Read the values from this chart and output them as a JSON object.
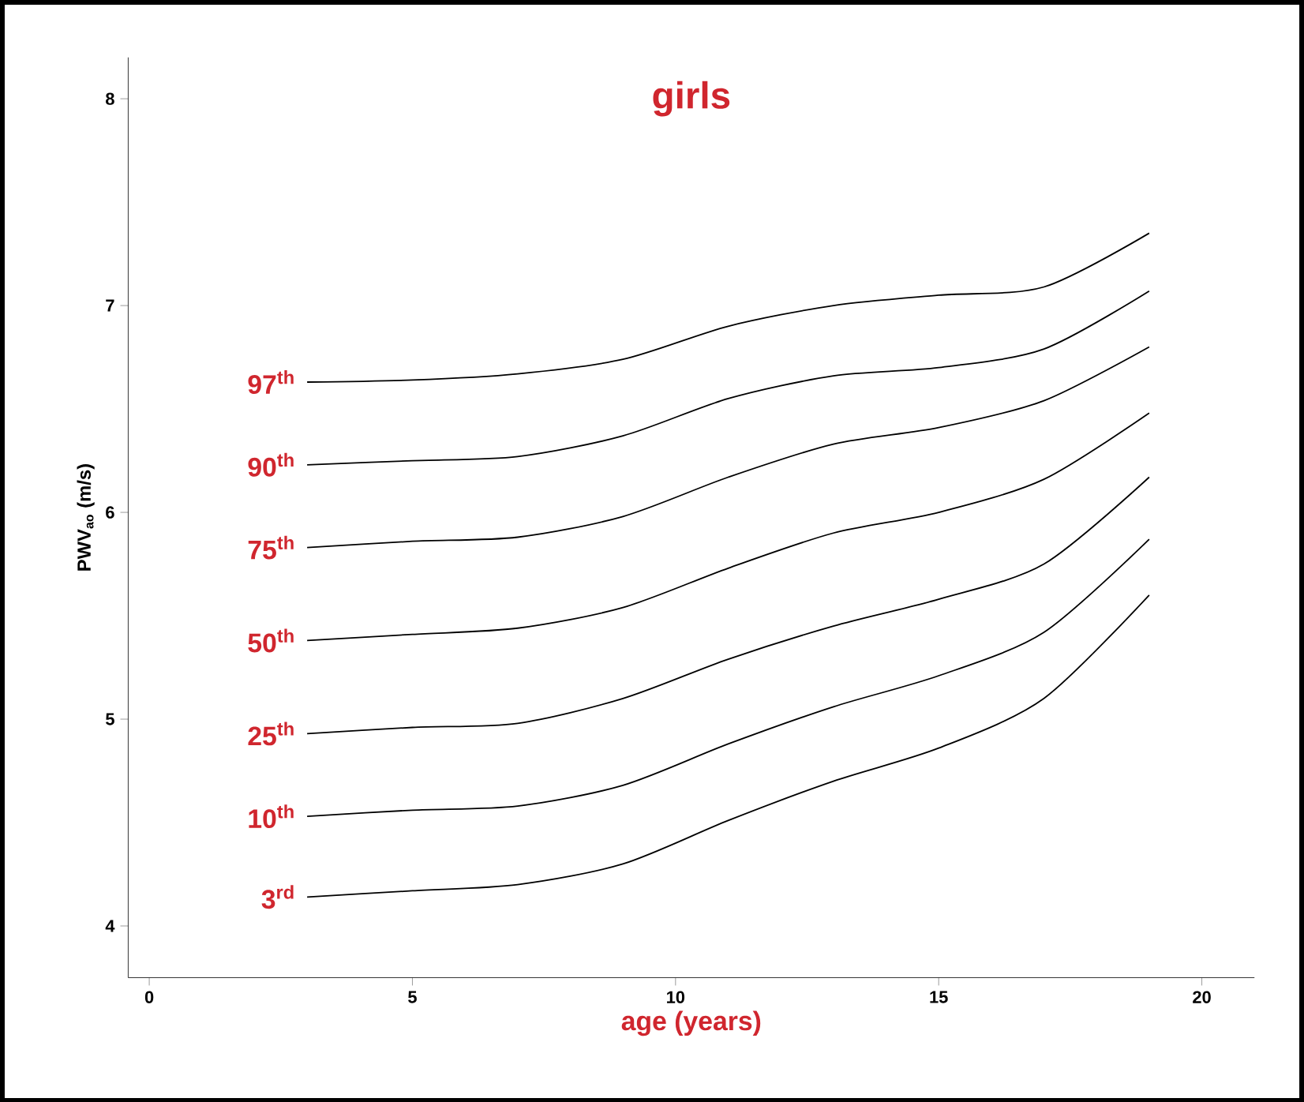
{
  "chart_data": {
    "type": "line",
    "title": "girls",
    "xlabel": "age (years)",
    "ylabel": "PWV$_{ao}$ (m/s)",
    "x": [
      3,
      5,
      7,
      9,
      11,
      13,
      15,
      17,
      19
    ],
    "series": [
      {
        "name": "97$^{th}$",
        "color": "#000000",
        "values": [
          6.63,
          6.64,
          6.67,
          6.74,
          6.9,
          7.0,
          7.05,
          7.09,
          7.35
        ]
      },
      {
        "name": "90$^{th}$",
        "color": "#000000",
        "values": [
          6.23,
          6.25,
          6.27,
          6.37,
          6.55,
          6.66,
          6.7,
          6.79,
          7.07
        ]
      },
      {
        "name": "75$^{th}$",
        "color": "#000000",
        "values": [
          5.83,
          5.86,
          5.88,
          5.98,
          6.17,
          6.33,
          6.41,
          6.54,
          6.8
        ]
      },
      {
        "name": "50$^{th}$",
        "color": "#000000",
        "values": [
          5.38,
          5.41,
          5.44,
          5.54,
          5.73,
          5.9,
          6.0,
          6.16,
          6.48
        ]
      },
      {
        "name": "25$^{th}$",
        "color": "#000000",
        "values": [
          4.93,
          4.96,
          4.98,
          5.1,
          5.29,
          5.45,
          5.58,
          5.75,
          6.17
        ]
      },
      {
        "name": "10$^{th}$",
        "color": "#000000",
        "values": [
          4.53,
          4.56,
          4.58,
          4.68,
          4.88,
          5.06,
          5.21,
          5.42,
          5.87
        ]
      },
      {
        "name": "3$^{rd}$",
        "color": "#000000",
        "values": [
          4.14,
          4.17,
          4.2,
          4.3,
          4.51,
          4.7,
          4.86,
          5.1,
          5.6
        ]
      }
    ],
    "xlim": [
      -0.4,
      21
    ],
    "ylim": [
      3.75,
      8.2
    ],
    "xticks": [
      0,
      5,
      10,
      15,
      20
    ],
    "yticks": [
      4,
      5,
      6,
      7,
      8
    ],
    "grid": false,
    "marker": "none",
    "line_style": "solid"
  }
}
